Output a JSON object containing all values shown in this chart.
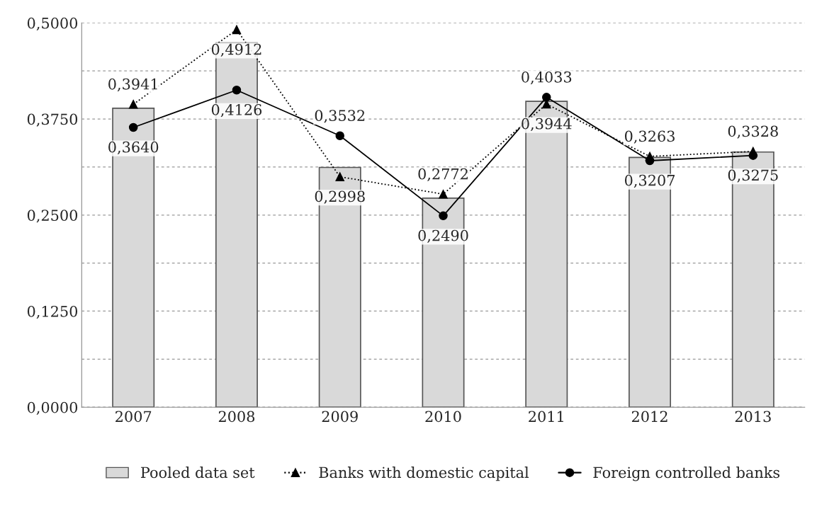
{
  "chart_data": {
    "type": "bar",
    "categories": [
      "2007",
      "2008",
      "2009",
      "2010",
      "2011",
      "2012",
      "2013"
    ],
    "series": [
      {
        "name": "Pooled data set",
        "color": "#d9d9d9",
        "values": [
          0.389,
          0.474,
          0.312,
          0.272,
          0.398,
          0.325,
          0.332
        ]
      },
      {
        "name": "Banks with domestic capital",
        "type": "line",
        "color": "#000000",
        "marker": "triangle",
        "line_style": "dotted",
        "values": [
          0.3941,
          0.4912,
          0.2998,
          0.2772,
          0.3944,
          0.3263,
          0.3328
        ],
        "value_labels": [
          "0,3941",
          "0,4912",
          "0,2998",
          "0,2772",
          "0,3944",
          "0,3263",
          "0,3328"
        ]
      },
      {
        "name": "Foreign controlled banks",
        "type": "line",
        "color": "#000000",
        "marker": "circle",
        "line_style": "solid",
        "values": [
          0.364,
          0.4126,
          0.3532,
          0.249,
          0.4033,
          0.3207,
          0.3275
        ],
        "value_labels": [
          "0,3640",
          "0,4126",
          "0,3532",
          "0,2490",
          "0,4033",
          "0,3207",
          "0,3275"
        ]
      }
    ],
    "ylim": [
      0,
      0.5
    ],
    "yticks": [
      {
        "value": 0,
        "label": "0,0000"
      },
      {
        "value": 0.0625,
        "label": null
      },
      {
        "value": 0.125,
        "label": "0,1250"
      },
      {
        "value": 0.1875,
        "label": null
      },
      {
        "value": 0.25,
        "label": "0,2500"
      },
      {
        "value": 0.3125,
        "label": null
      },
      {
        "value": 0.375,
        "label": "0,3750"
      },
      {
        "value": 0.4375,
        "label": null
      },
      {
        "value": 0.5,
        "label": "0,5000"
      }
    ],
    "grid": "y",
    "legend": "bottom"
  }
}
